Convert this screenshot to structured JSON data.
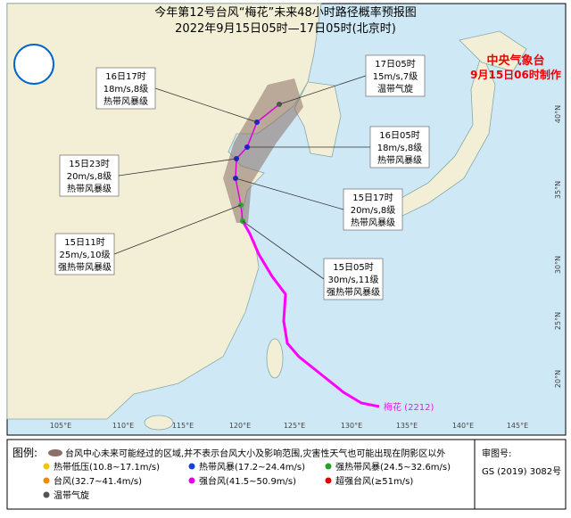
{
  "header": {
    "title": "今年第12号台风“梅花”未来48小时路径概率预报图",
    "subtitle": "2022年9月15日05时—17日05时(北京时)"
  },
  "agency": {
    "name": "中央气象台",
    "issued": "9月15日06时制作"
  },
  "callouts": [
    {
      "lines": [
        "16日17时",
        "18m/s,8级",
        "热带风暴级"
      ]
    },
    {
      "lines": [
        "17日05时",
        "15m/s,7级",
        "温带气旋"
      ]
    },
    {
      "lines": [
        "16日05时",
        "18m/s,8级",
        "热带风暴级"
      ]
    },
    {
      "lines": [
        "15日23时",
        "20m/s,8级",
        "热带风暴级"
      ]
    },
    {
      "lines": [
        "15日17时",
        "20m/s,8级",
        "热带风暴级"
      ]
    },
    {
      "lines": [
        "15日11时",
        "25m/s,10级",
        "强热带风暴级"
      ]
    },
    {
      "lines": [
        "15日05时",
        "30m/s,11级",
        "强热带风暴级"
      ]
    }
  ],
  "typhoon_label": "梅花 (2212)",
  "lon_labels": [
    "105°E",
    "110°E",
    "115°E",
    "120°E",
    "125°E",
    "130°E",
    "135°E",
    "140°E",
    "145°E"
  ],
  "lat_labels": [
    "40°N",
    "35°N",
    "30°N",
    "25°N",
    "20°N"
  ],
  "legend": {
    "title": "图例:",
    "cone": "台风中心未来可能经过的区域,并不表示台风大小及影响范围,灾害性天气也可能出现在阴影区以外",
    "items": [
      "热带低压(10.8~17.1m/s)",
      "热带风暴(17.2~24.4m/s)",
      "强热带风暴(24.5~32.6m/s)",
      "台风(32.7~41.4m/s)",
      "强台风(41.5~50.9m/s)",
      "超强台风(≥51m/s)",
      "温带气旋"
    ]
  },
  "approval": {
    "label": "审图号:",
    "number": "GS (2019) 3082号"
  }
}
